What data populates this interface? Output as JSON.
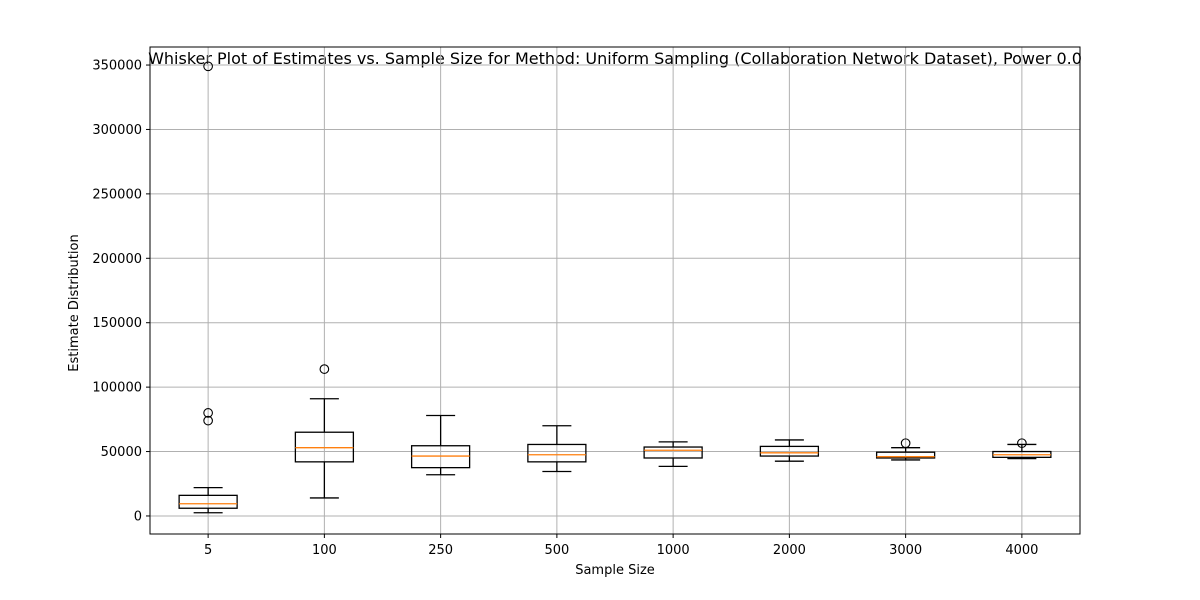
{
  "chart_data": {
    "type": "boxplot",
    "title": "Whisker Plot of Estimates vs. Sample Size for Method: Uniform Sampling (Collaboration Network Dataset), Power 0.0",
    "xlabel": "Sample Size",
    "ylabel": "Estimate Distribution",
    "ylim": [
      -14000,
      364000
    ],
    "yticks": [
      0,
      50000,
      100000,
      150000,
      200000,
      250000,
      300000,
      350000
    ],
    "ytick_labels": [
      "0",
      "50000",
      "100000",
      "150000",
      "200000",
      "250000",
      "300000",
      "350000"
    ],
    "grid": true,
    "colors": {
      "box": "#000000",
      "median": "#ff7f0e",
      "grid": "#b0b0b0"
    },
    "categories": [
      "5",
      "100",
      "250",
      "500",
      "1000",
      "2000",
      "3000",
      "4000"
    ],
    "boxes": [
      {
        "whisker_low": 2500,
        "q1": 6000,
        "median": 9500,
        "q3": 16000,
        "whisker_high": 22000,
        "outliers": [
          74000,
          80000,
          349000
        ]
      },
      {
        "whisker_low": 14000,
        "q1": 42000,
        "median": 53000,
        "q3": 65000,
        "whisker_high": 91000,
        "outliers": [
          114000
        ]
      },
      {
        "whisker_low": 32000,
        "q1": 37500,
        "median": 46500,
        "q3": 54500,
        "whisker_high": 78000,
        "outliers": []
      },
      {
        "whisker_low": 34500,
        "q1": 42000,
        "median": 47500,
        "q3": 55500,
        "whisker_high": 70000,
        "outliers": []
      },
      {
        "whisker_low": 38500,
        "q1": 45000,
        "median": 51000,
        "q3": 53500,
        "whisker_high": 57500,
        "outliers": []
      },
      {
        "whisker_low": 42500,
        "q1": 46500,
        "median": 49000,
        "q3": 54000,
        "whisker_high": 59000,
        "outliers": []
      },
      {
        "whisker_low": 43500,
        "q1": 45000,
        "median": 46000,
        "q3": 49500,
        "whisker_high": 53000,
        "outliers": [
          56500
        ]
      },
      {
        "whisker_low": 44500,
        "q1": 45500,
        "median": 47500,
        "q3": 50000,
        "whisker_high": 55500,
        "outliers": [
          56500
        ]
      }
    ]
  }
}
